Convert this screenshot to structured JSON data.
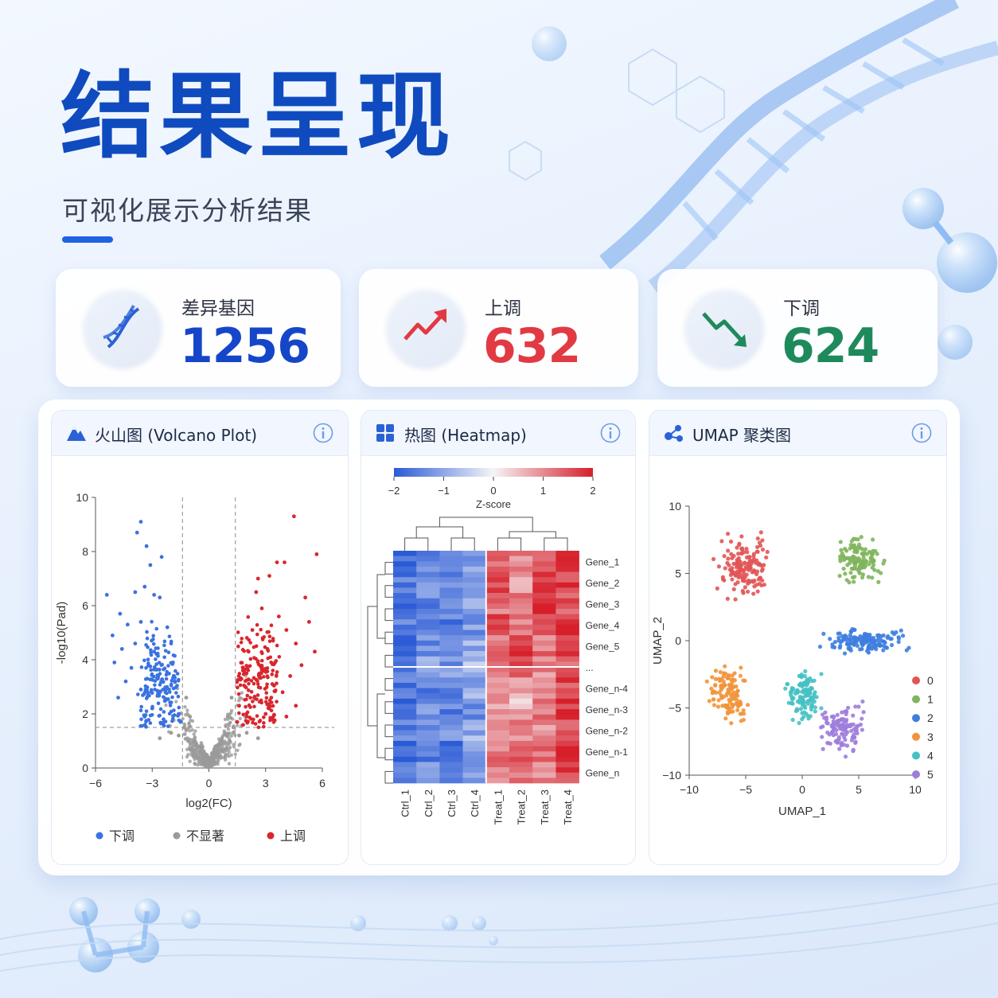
{
  "header": {
    "title": "结果呈现",
    "subtitle": "可视化展示分析结果"
  },
  "stats": [
    {
      "label": "差异基因",
      "value": "1256",
      "color": "#1546c9",
      "icon": "dna-icon"
    },
    {
      "label": "上调",
      "value": "632",
      "color": "#e23a43",
      "icon": "trend-up-icon"
    },
    {
      "label": "下调",
      "value": "624",
      "color": "#1e8a5c",
      "icon": "trend-down-icon"
    }
  ],
  "panels": {
    "volcano": {
      "title": "火山图 (Volcano Plot)",
      "icon": "mountain-icon"
    },
    "heatmap": {
      "title": "热图 (Heatmap)",
      "icon": "grid-icon"
    },
    "umap": {
      "title": "UMAP 聚类图",
      "icon": "network-icon"
    }
  },
  "chart_data": [
    {
      "type": "scatter",
      "name": "volcano",
      "xlabel": "log2(FC)",
      "ylabel": "-log10(Pad)",
      "xlim": [
        -6,
        6
      ],
      "ylim": [
        0,
        10
      ],
      "xticks": [
        "−6",
        "−3",
        "0",
        "3",
        "6"
      ],
      "yticks": [
        "0",
        "2",
        "4",
        "6",
        "8",
        "10"
      ],
      "thresholds": {
        "log2fc": 1.4,
        "neglog10p": 1.5
      },
      "legend": {
        "position": "bottom",
        "items": [
          {
            "label": "下调",
            "color": "#3b72e0"
          },
          {
            "label": "不显著",
            "color": "#9a9a9a"
          },
          {
            "label": "上调",
            "color": "#d9262e"
          }
        ]
      },
      "series": [
        {
          "name": "下调",
          "color": "#3b72e0",
          "points": [
            [
              -3.6,
              9.1
            ],
            [
              -3.8,
              8.7
            ],
            [
              -3.3,
              8.2
            ],
            [
              -3.1,
              7.5
            ],
            [
              -2.5,
              7.8
            ],
            [
              -5.4,
              6.4
            ],
            [
              -3.9,
              6.5
            ],
            [
              -3.4,
              6.7
            ],
            [
              -2.9,
              6.4
            ],
            [
              -2.6,
              6.3
            ],
            [
              -4.7,
              5.7
            ],
            [
              -4.3,
              5.3
            ],
            [
              -3.6,
              5.4
            ],
            [
              -5.1,
              4.9
            ],
            [
              -4.6,
              4.4
            ],
            [
              -3.9,
              4.6
            ],
            [
              -4.1,
              3.7
            ],
            [
              -5.0,
              3.9
            ],
            [
              -4.4,
              3.2
            ],
            [
              -3.6,
              2.9
            ],
            [
              -4.8,
              2.6
            ],
            [
              -3.2,
              3.8
            ],
            [
              -2.9,
              4.3
            ],
            [
              -2.7,
              3.3
            ],
            [
              -3.0,
              2.2
            ],
            [
              -2.4,
              1.8
            ],
            [
              -2.2,
              5.2
            ],
            [
              -2.0,
              4.6
            ],
            [
              -1.8,
              3.2
            ],
            [
              -1.6,
              2.0
            ],
            [
              -1.5,
              1.7
            ],
            [
              -2.3,
              2.8
            ],
            [
              -1.9,
              3.9
            ],
            [
              -3.4,
              1.9
            ]
          ]
        },
        {
          "name": "上调",
          "color": "#d9262e",
          "points": [
            [
              4.5,
              9.3
            ],
            [
              5.7,
              7.9
            ],
            [
              3.2,
              7.1
            ],
            [
              3.6,
              7.6
            ],
            [
              4.0,
              7.6
            ],
            [
              2.6,
              7.0
            ],
            [
              2.5,
              6.5
            ],
            [
              5.1,
              6.3
            ],
            [
              5.3,
              5.4
            ],
            [
              4.1,
              5.1
            ],
            [
              3.7,
              5.6
            ],
            [
              4.6,
              4.6
            ],
            [
              5.6,
              4.3
            ],
            [
              4.9,
              3.8
            ],
            [
              4.3,
              3.4
            ],
            [
              3.5,
              3.9
            ],
            [
              3.1,
              4.4
            ],
            [
              2.7,
              3.5
            ],
            [
              3.9,
              2.8
            ],
            [
              4.6,
              2.3
            ],
            [
              3.0,
              2.0
            ],
            [
              2.3,
              5.1
            ],
            [
              2.1,
              4.3
            ],
            [
              1.8,
              3.6
            ],
            [
              1.6,
              2.3
            ],
            [
              1.5,
              1.7
            ],
            [
              2.4,
              2.6
            ],
            [
              2.0,
              1.9
            ],
            [
              3.3,
              2.6
            ],
            [
              4.1,
              1.9
            ],
            [
              2.8,
              5.9
            ]
          ]
        },
        {
          "name": "不显著",
          "color": "#9a9a9a",
          "points": [
            [
              0,
              0.05
            ],
            [
              0.3,
              0.2
            ],
            [
              -0.3,
              0.2
            ],
            [
              0.6,
              0.4
            ],
            [
              -0.6,
              0.4
            ],
            [
              0.9,
              0.7
            ],
            [
              -0.9,
              0.7
            ],
            [
              1.1,
              1.0
            ],
            [
              -1.1,
              1.0
            ],
            [
              1.3,
              1.5
            ],
            [
              -1.3,
              1.5
            ],
            [
              1.6,
              1.2
            ],
            [
              -1.6,
              1.2
            ],
            [
              2.0,
              1.3
            ],
            [
              -2.0,
              1.3
            ],
            [
              2.6,
              1.1
            ],
            [
              -2.6,
              1.1
            ],
            [
              1.2,
              2.6
            ],
            [
              -1.2,
              2.6
            ],
            [
              1.0,
              1.9
            ],
            [
              -1.0,
              1.9
            ]
          ]
        }
      ]
    },
    {
      "type": "heatmap",
      "name": "heatmap",
      "colorbar": {
        "label": "Z-score",
        "min": -2,
        "max": 2,
        "ticks": [
          "−2",
          "−1",
          "0",
          "1",
          "2"
        ]
      },
      "columns": [
        "Ctrl_1",
        "Ctrl_2",
        "Ctrl_3",
        "Ctrl_4",
        "Treat_1",
        "Treat_2",
        "Treat_3",
        "Treat_4"
      ],
      "row_labels": [
        "Gene_1",
        "Gene_2",
        "Gene_3",
        "Gene_4",
        "Gene_5",
        "...",
        "Gene_n-4",
        "Gene_n-3",
        "Gene_n-2",
        "Gene_n-1",
        "Gene_n"
      ],
      "rows": [
        [
          -1.8,
          -1.5,
          -1.6,
          -1.1,
          1.4,
          1.1,
          1.5,
          1.8
        ],
        [
          -1.6,
          -1.2,
          -1.4,
          -1.0,
          1.5,
          0.9,
          1.7,
          1.6
        ],
        [
          -1.9,
          -1.4,
          -1.2,
          -0.8,
          1.2,
          1.3,
          1.9,
          1.5
        ],
        [
          -1.5,
          -1.6,
          -1.5,
          -1.2,
          1.6,
          1.0,
          1.3,
          1.9
        ],
        [
          -1.7,
          -1.3,
          -1.3,
          -0.9,
          1.3,
          1.8,
          1.2,
          1.7
        ],
        [
          -1.4,
          -1.1,
          -1.2,
          -0.7,
          1.1,
          1.5,
          1.0,
          1.4
        ],
        [
          -1.6,
          -1.5,
          -1.4,
          -1.0,
          1.0,
          0.8,
          1.1,
          1.6
        ],
        [
          -1.8,
          -1.2,
          -1.5,
          -1.3,
          0.9,
          0.6,
          1.2,
          1.8
        ],
        [
          -1.5,
          -1.4,
          -1.1,
          -0.9,
          0.7,
          1.1,
          0.9,
          1.5
        ],
        [
          -1.9,
          -1.6,
          -1.6,
          -1.2,
          1.2,
          1.4,
          1.3,
          1.9
        ],
        [
          -1.7,
          -1.3,
          -1.4,
          -1.0,
          1.0,
          1.2,
          1.1,
          1.7
        ]
      ]
    },
    {
      "type": "scatter",
      "name": "umap",
      "xlabel": "UMAP_1",
      "ylabel": "UMAP_2",
      "xlim": [
        -10,
        10
      ],
      "ylim": [
        -10,
        10
      ],
      "xticks": [
        "−10",
        "−5",
        "0",
        "5",
        "10"
      ],
      "yticks": [
        "−10",
        "−5",
        "0",
        "5",
        "10"
      ],
      "legend": {
        "position": "right",
        "items": [
          {
            "label": "0",
            "color": "#e25555"
          },
          {
            "label": "1",
            "color": "#7fb55c"
          },
          {
            "label": "2",
            "color": "#3f7ee0"
          },
          {
            "label": "3",
            "color": "#f2943a"
          },
          {
            "label": "4",
            "color": "#45c1c4"
          },
          {
            "label": "5",
            "color": "#9d7ddb"
          }
        ]
      },
      "clusters": [
        {
          "label": "0",
          "center": [
            -5.0,
            5.5
          ],
          "spread": [
            2.3,
            2.5
          ],
          "count": 150
        },
        {
          "label": "1",
          "center": [
            5.0,
            6.0
          ],
          "spread": [
            2.2,
            1.6
          ],
          "count": 120
        },
        {
          "label": "2",
          "center": [
            5.5,
            0.0
          ],
          "spread": [
            3.5,
            1.0
          ],
          "count": 150
        },
        {
          "label": "3",
          "center": [
            -6.5,
            -4.0
          ],
          "spread": [
            1.6,
            2.0
          ],
          "count": 120
        },
        {
          "label": "4",
          "center": [
            0.2,
            -4.0
          ],
          "spread": [
            1.4,
            2.0
          ],
          "count": 110
        },
        {
          "label": "5",
          "center": [
            3.5,
            -6.5
          ],
          "spread": [
            2.0,
            1.8
          ],
          "count": 120
        }
      ]
    }
  ]
}
